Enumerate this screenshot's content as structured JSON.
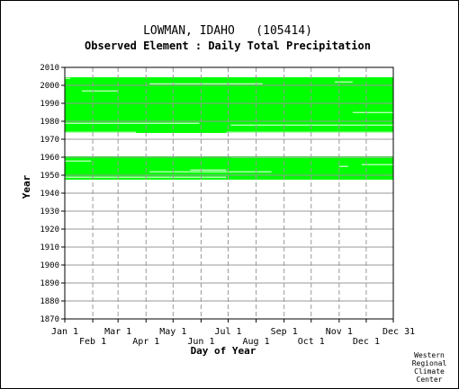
{
  "title": "LOWMAN, IDAHO   (105414)",
  "subtitle": "Observed Element : Daily Total Precipitation",
  "credit": [
    "Western",
    "Regional",
    "Climate",
    "Center"
  ],
  "chart_data": {
    "type": "heatmap",
    "xlabel": "Day of Year",
    "ylabel": "Year",
    "ylim": [
      1870,
      2010
    ],
    "yticks": [
      1870,
      1880,
      1890,
      1900,
      1910,
      1920,
      1930,
      1940,
      1950,
      1960,
      1970,
      1980,
      1990,
      2000,
      2010
    ],
    "xlim": [
      1,
      365
    ],
    "xticks_top": [
      {
        "day": 1,
        "label": "Jan 1"
      },
      {
        "day": 60,
        "label": "Mar 1"
      },
      {
        "day": 121,
        "label": "May 1"
      },
      {
        "day": 182,
        "label": "Jul 1"
      },
      {
        "day": 244,
        "label": "Sep 1"
      },
      {
        "day": 305,
        "label": "Nov 1"
      },
      {
        "day": 365,
        "label": "Dec 31"
      }
    ],
    "xticks_bottom": [
      {
        "day": 32,
        "label": "Feb 1"
      },
      {
        "day": 91,
        "label": "Apr 1"
      },
      {
        "day": 152,
        "label": "Jun 1"
      },
      {
        "day": 213,
        "label": "Aug 1"
      },
      {
        "day": 274,
        "label": "Oct 1"
      },
      {
        "day": 335,
        "label": "Dec 1"
      }
    ],
    "grid": true,
    "data_color": "#00ff00",
    "data_coverage": [
      {
        "years": [
          1947.5,
          1960.5
        ],
        "days": [
          1,
          365
        ]
      },
      {
        "years": [
          1973.5,
          2004.5
        ],
        "days": [
          1,
          365
        ]
      }
    ],
    "missing_segments": [
      {
        "year": 1958,
        "days": [
          1,
          30
        ]
      },
      {
        "year": 1953,
        "days": [
          140,
          180
        ]
      },
      {
        "year": 1952,
        "days": [
          95,
          230
        ]
      },
      {
        "year": 1955,
        "days": [
          305,
          315
        ]
      },
      {
        "year": 1949,
        "days": [
          1,
          180
        ]
      },
      {
        "year": 1960,
        "days": [
          185,
          365
        ]
      },
      {
        "year": 1956,
        "days": [
          330,
          365
        ]
      },
      {
        "year": 2004,
        "days": [
          1,
          7
        ]
      },
      {
        "year": 2002,
        "days": [
          300,
          320
        ]
      },
      {
        "year": 2001,
        "days": [
          95,
          220
        ]
      },
      {
        "year": 1997,
        "days": [
          20,
          60
        ]
      },
      {
        "year": 1985,
        "days": [
          320,
          365
        ]
      },
      {
        "year": 1979,
        "days": [
          1,
          150
        ]
      },
      {
        "year": 1978,
        "days": [
          185,
          365
        ]
      },
      {
        "year": 1974,
        "days": [
          1,
          80
        ]
      },
      {
        "year": 1974,
        "days": [
          180,
          365
        ]
      }
    ]
  }
}
